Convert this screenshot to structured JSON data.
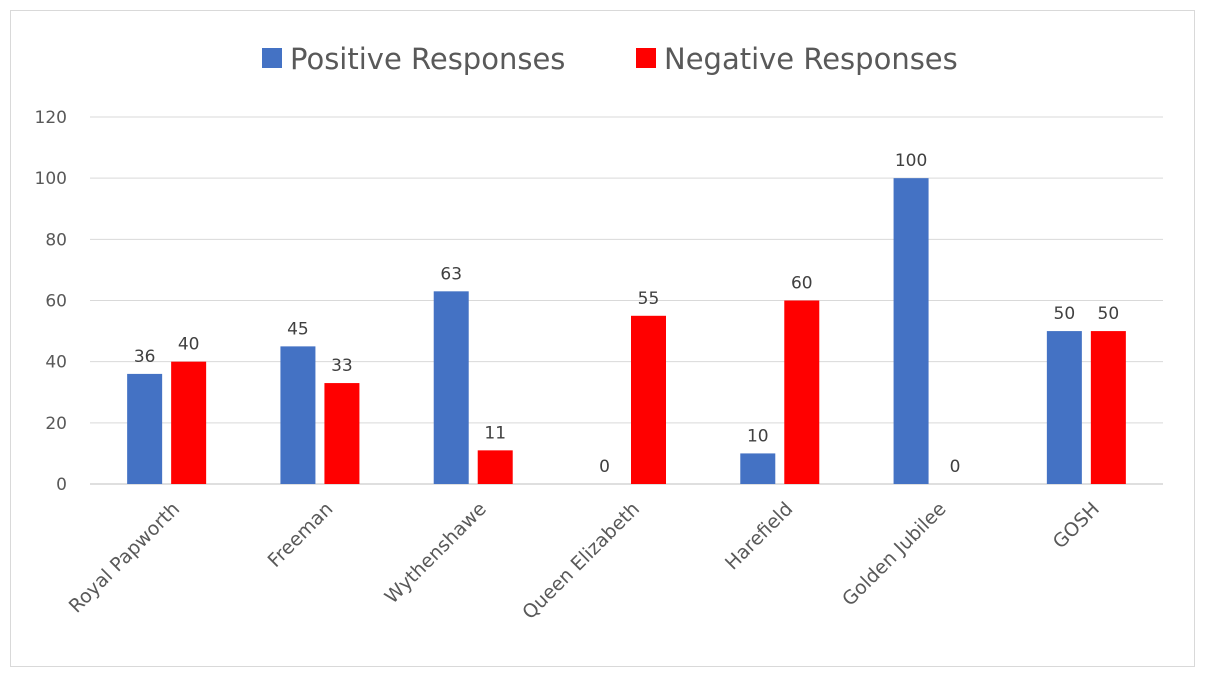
{
  "chart_data": {
    "type": "bar",
    "categories": [
      "Royal Papworth",
      "Freeman",
      "Wythenshawe",
      "Queen Elizabeth",
      "Harefield",
      "Golden Jubilee",
      "GOSH"
    ],
    "series": [
      {
        "name": "Positive Responses",
        "values": [
          36,
          45,
          63,
          0,
          10,
          100,
          50
        ],
        "color": "#4472c4"
      },
      {
        "name": "Negative Responses",
        "values": [
          40,
          33,
          11,
          55,
          60,
          0,
          50
        ],
        "color": "#ff0000"
      }
    ],
    "ylim": [
      0,
      120
    ],
    "yticks": [
      0,
      20,
      40,
      60,
      80,
      100,
      120
    ],
    "grid": true,
    "legend_position": "top",
    "title": "",
    "xlabel": "",
    "ylabel": ""
  }
}
